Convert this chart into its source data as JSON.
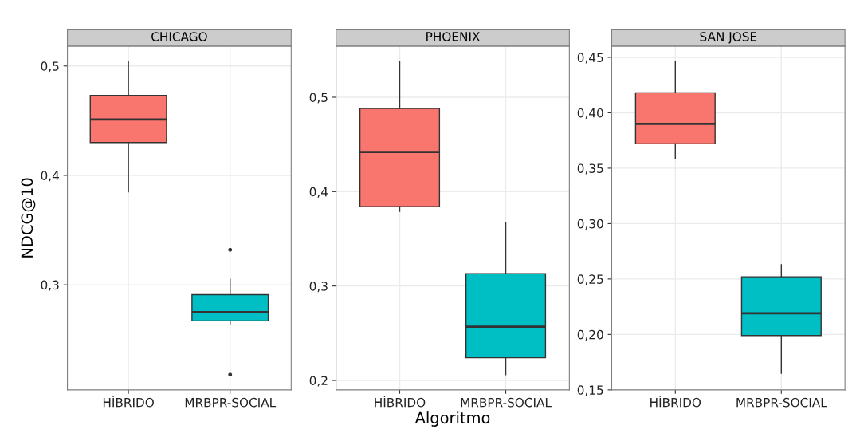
{
  "chart_data": [
    {
      "type": "box",
      "title": "CHICAGO",
      "ylabel": "NDCG@10",
      "categories": [
        "HÍBRIDO",
        "MRBPR-SOCIAL"
      ],
      "colors": [
        "#f8766d",
        "#00bfc4"
      ],
      "grid": true,
      "legend": false,
      "ylim": [
        0.204,
        0.518
      ],
      "yticks": [
        {
          "value": 0.3,
          "label": "0,3"
        },
        {
          "value": 0.4,
          "label": "0,4"
        },
        {
          "value": 0.5,
          "label": "0,5"
        }
      ],
      "boxes": [
        {
          "low": 0.385,
          "q1": 0.43,
          "median": 0.451,
          "q3": 0.473,
          "high": 0.504
        },
        {
          "low": 0.264,
          "q1": 0.267,
          "median": 0.275,
          "q3": 0.291,
          "high": 0.305,
          "outliers": [
            0.332,
            0.218
          ]
        }
      ]
    },
    {
      "type": "box",
      "title": "PHOENIX",
      "xlabel": "Algoritmo",
      "categories": [
        "HÍBRIDO",
        "MRBPR-SOCIAL"
      ],
      "colors": [
        "#f8766d",
        "#00bfc4"
      ],
      "grid": true,
      "legend": false,
      "ylim": [
        0.19,
        0.554
      ],
      "yticks": [
        {
          "value": 0.2,
          "label": "0,2"
        },
        {
          "value": 0.3,
          "label": "0,3"
        },
        {
          "value": 0.4,
          "label": "0,4"
        },
        {
          "value": 0.5,
          "label": "0,5"
        }
      ],
      "boxes": [
        {
          "low": 0.379,
          "q1": 0.384,
          "median": 0.442,
          "q3": 0.488,
          "high": 0.538
        },
        {
          "low": 0.206,
          "q1": 0.224,
          "median": 0.257,
          "q3": 0.313,
          "high": 0.367
        }
      ]
    },
    {
      "type": "box",
      "title": "SAN JOSE",
      "categories": [
        "HÍBRIDO",
        "MRBPR-SOCIAL"
      ],
      "colors": [
        "#f8766d",
        "#00bfc4"
      ],
      "grid": true,
      "legend": false,
      "ylim": [
        0.15,
        0.46
      ],
      "yticks": [
        {
          "value": 0.15,
          "label": "0,15"
        },
        {
          "value": 0.2,
          "label": "0,20"
        },
        {
          "value": 0.25,
          "label": "0,25"
        },
        {
          "value": 0.3,
          "label": "0,30"
        },
        {
          "value": 0.35,
          "label": "0,35"
        },
        {
          "value": 0.4,
          "label": "0,40"
        },
        {
          "value": 0.45,
          "label": "0,45"
        }
      ],
      "boxes": [
        {
          "low": 0.359,
          "q1": 0.372,
          "median": 0.39,
          "q3": 0.418,
          "high": 0.446
        },
        {
          "low": 0.165,
          "q1": 0.199,
          "median": 0.219,
          "q3": 0.252,
          "high": 0.263
        }
      ]
    }
  ]
}
